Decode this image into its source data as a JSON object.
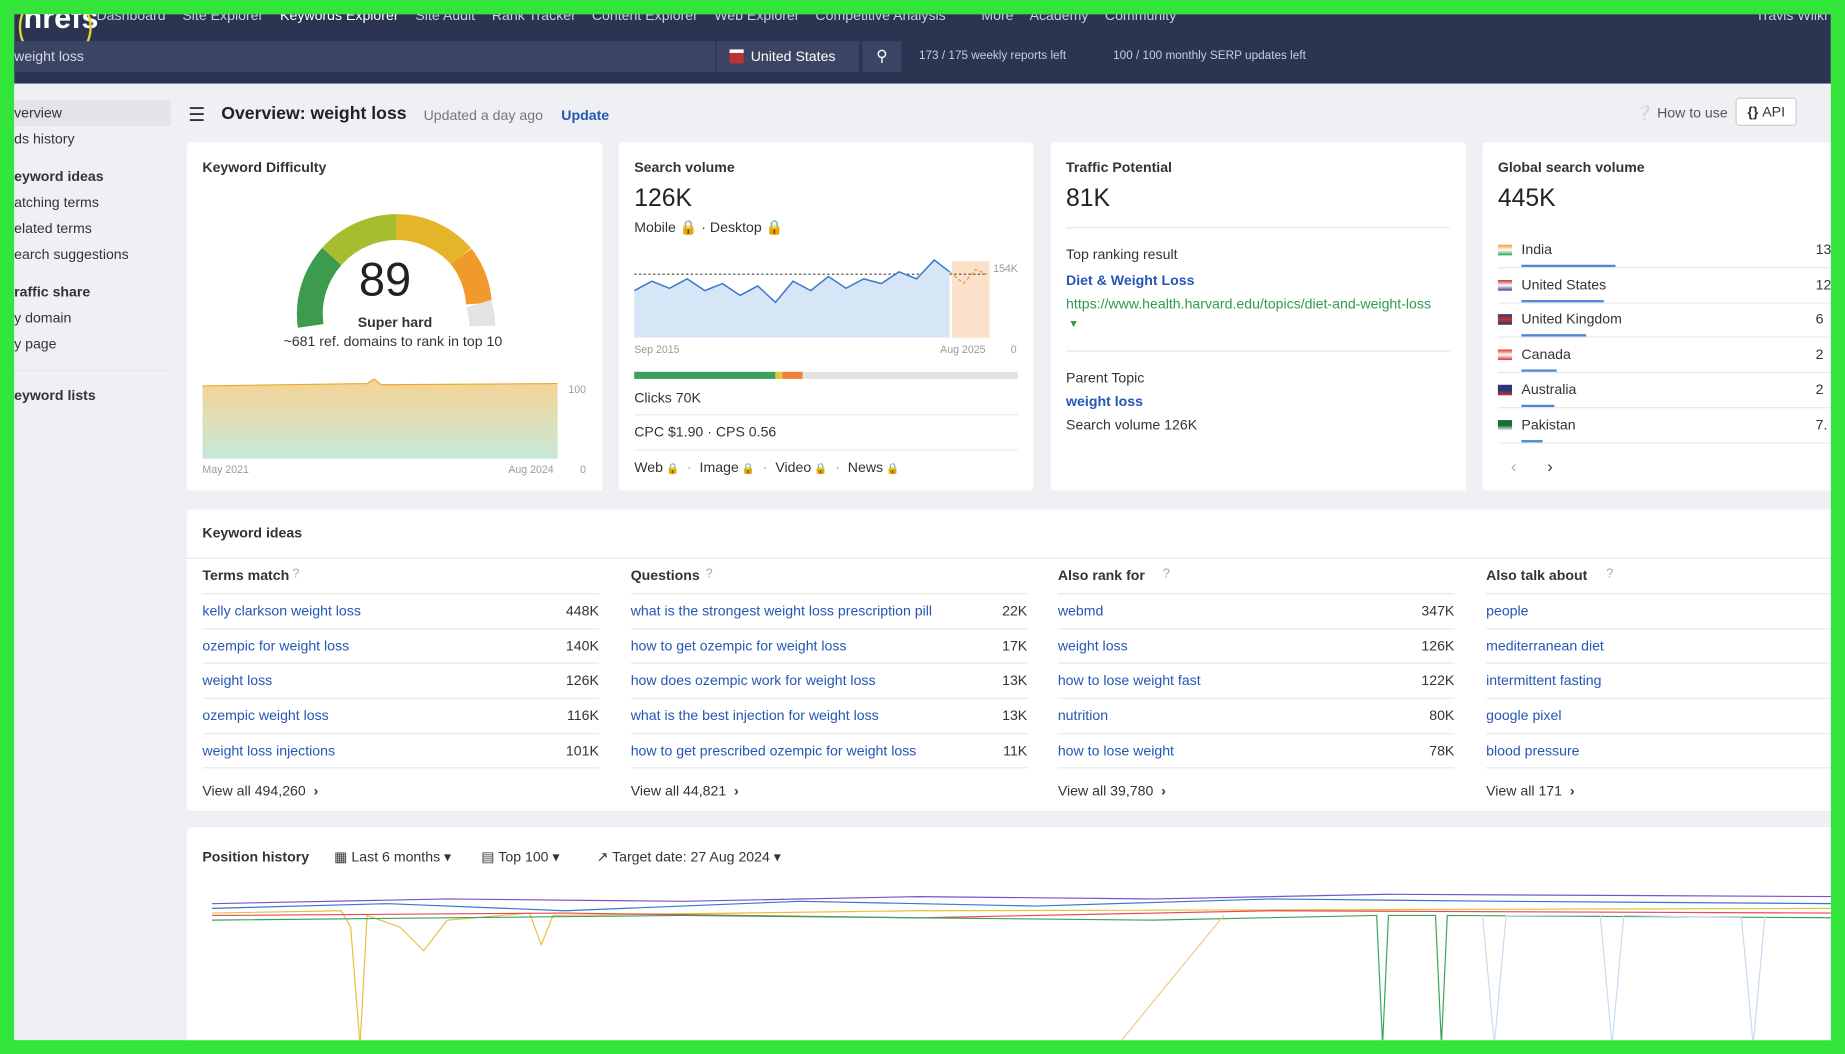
{
  "nav": {
    "logo": "hrefs",
    "items": [
      "Dashboard",
      "Site Explorer",
      "Keywords Explorer",
      "Site Audit",
      "Rank Tracker",
      "Content Explorer",
      "Web Explorer",
      "Competitive Analysis",
      "More",
      "Academy",
      "Community"
    ],
    "user": "Travis Wilki"
  },
  "search": {
    "query": "weight loss",
    "country": "United States",
    "weekly": "173 / 175 weekly reports left",
    "monthly": "100 / 100 monthly SERP updates left"
  },
  "sidebar": {
    "items": [
      {
        "text": "verview",
        "bold": false
      },
      {
        "text": "ds history",
        "bold": false
      },
      {
        "text": "eyword ideas",
        "bold": true
      },
      {
        "text": "atching terms",
        "bold": false
      },
      {
        "text": "elated terms",
        "bold": false
      },
      {
        "text": "earch suggestions",
        "bold": false
      },
      {
        "text": "raffic share",
        "bold": true
      },
      {
        "text": "y domain",
        "bold": false
      },
      {
        "text": "y page",
        "bold": false
      },
      {
        "text": "eyword lists",
        "bold": true
      }
    ]
  },
  "header": {
    "title": "Overview: weight loss",
    "updated": "Updated a day ago",
    "update": "Update",
    "how_to": "How to use",
    "api": "API"
  },
  "kd": {
    "title": "Keyword Difficulty",
    "score": "89",
    "label": "Super hard",
    "note": "~681 ref. domains to rank in top 10",
    "y_top": "100",
    "y_bottom": "0",
    "x_start": "May 2021",
    "x_end": "Aug 2024"
  },
  "sv": {
    "title": "Search volume",
    "value": "126K",
    "devices": [
      "Mobile",
      "Desktop"
    ],
    "y_top": "154K",
    "y_bottom": "0",
    "x_start": "Sep 2015",
    "x_end": "Aug 2025",
    "clicks": "Clicks 70K",
    "cpc": "CPC $1.90",
    "cps": "CPS 0.56",
    "serp": [
      "Web",
      "Image",
      "Video",
      "News"
    ]
  },
  "tp": {
    "title": "Traffic Potential",
    "value": "81K",
    "top_label": "Top ranking result",
    "top_title": "Diet & Weight Loss",
    "top_url": "https://www.health.harvard.edu/topics/diet-and-weight-loss",
    "parent_label": "Parent Topic",
    "parent": "weight loss",
    "parent_sv": "Search volume 126K"
  },
  "gsv": {
    "title": "Global search volume",
    "value": "445K",
    "countries": [
      {
        "name": "India",
        "value": "13"
      },
      {
        "name": "United States",
        "value": "12"
      },
      {
        "name": "United Kingdom",
        "value": "6"
      },
      {
        "name": "Canada",
        "value": "2"
      },
      {
        "name": "Australia",
        "value": "2"
      },
      {
        "name": "Pakistan",
        "value": "7."
      }
    ]
  },
  "ideas": {
    "title": "Keyword ideas",
    "columns": [
      {
        "heading": "Terms match",
        "rows": [
          [
            "kelly clarkson weight loss",
            "448K"
          ],
          [
            "ozempic for weight loss",
            "140K"
          ],
          [
            "weight loss",
            "126K"
          ],
          [
            "ozempic weight loss",
            "116K"
          ],
          [
            "weight loss injections",
            "101K"
          ]
        ],
        "view_all": "View all 494,260"
      },
      {
        "heading": "Questions",
        "rows": [
          [
            "what is the strongest weight loss prescription pill",
            "22K"
          ],
          [
            "how to get ozempic for weight loss",
            "17K"
          ],
          [
            "how does ozempic work for weight loss",
            "13K"
          ],
          [
            "what is the best injection for weight loss",
            "13K"
          ],
          [
            "how to get prescribed ozempic for weight loss",
            "11K"
          ]
        ],
        "view_all": "View all 44,821"
      },
      {
        "heading": "Also rank for",
        "rows": [
          [
            "webmd",
            "347K"
          ],
          [
            "weight loss",
            "126K"
          ],
          [
            "how to lose weight fast",
            "122K"
          ],
          [
            "nutrition",
            "80K"
          ],
          [
            "how to lose weight",
            "78K"
          ]
        ],
        "view_all": "View all 39,780"
      },
      {
        "heading": "Also talk about",
        "rows": [
          [
            "people",
            null
          ],
          [
            "mediterranean diet",
            null
          ],
          [
            "intermittent fasting",
            null
          ],
          [
            "google pixel",
            null
          ],
          [
            "blood pressure",
            null
          ]
        ],
        "view_all": "View all 171"
      }
    ]
  },
  "history": {
    "title": "Position history",
    "period": "Last 6 months",
    "top": "Top 100",
    "target": "Target date: 27 Aug 2024"
  }
}
